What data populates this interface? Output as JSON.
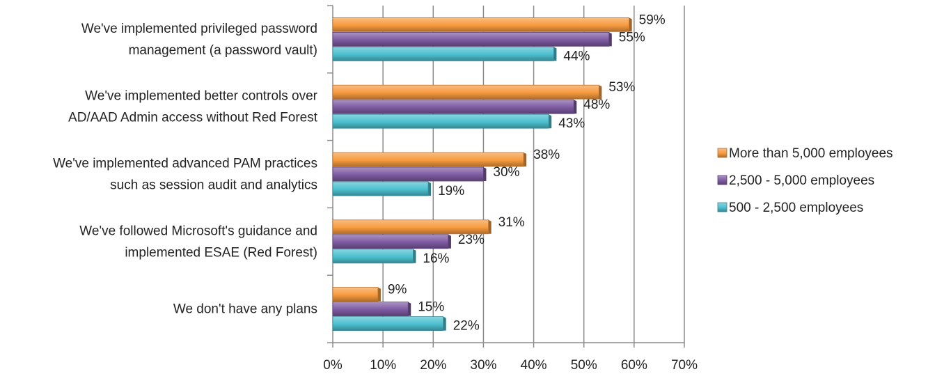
{
  "chart_data": {
    "type": "bar",
    "orientation": "horizontal",
    "title": "",
    "xlabel": "",
    "ylabel": "",
    "categories": [
      [
        "We've implemented privileged password",
        "management (a password vault)"
      ],
      [
        "We've implemented better controls over",
        "AD/AAD Admin access without Red Forest"
      ],
      [
        "We've implemented advanced PAM practices",
        "such as session audit and analytics"
      ],
      [
        "We've followed Microsoft's guidance and",
        "implemented ESAE (Red Forest)"
      ],
      [
        "We don't have any plans"
      ]
    ],
    "series": [
      {
        "name": "More than 5,000 employees",
        "color": "#F79A3E",
        "values": [
          59,
          53,
          38,
          31,
          9
        ],
        "labels": [
          "59%",
          "53%",
          "38%",
          "31%",
          "9%"
        ]
      },
      {
        "name": "2,500 - 5,000 employees",
        "color": "#7E5AA2",
        "values": [
          55,
          48,
          30,
          23,
          15
        ],
        "labels": [
          "55%",
          "48%",
          "30%",
          "23%",
          "15%"
        ]
      },
      {
        "name": "500 - 2,500 employees",
        "color": "#4BBFCF",
        "values": [
          44,
          43,
          19,
          16,
          22
        ],
        "labels": [
          "44%",
          "43%",
          "19%",
          "16%",
          "22%"
        ]
      }
    ],
    "xlim": [
      0,
      70
    ],
    "x_ticks": [
      "0%",
      "10%",
      "20%",
      "30%",
      "40%",
      "50%",
      "60%",
      "70%"
    ],
    "grid": "vertical",
    "legend_position": "right"
  }
}
